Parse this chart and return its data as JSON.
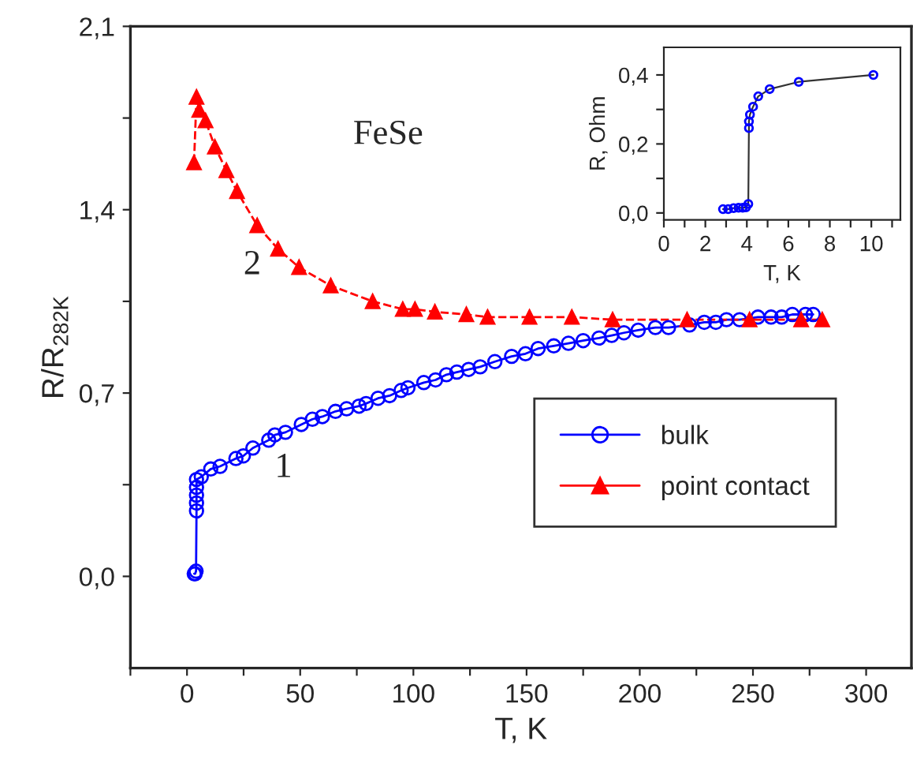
{
  "chart_data": [
    {
      "type": "line",
      "xlabel": "T, K",
      "ylabel": "R/R$_{282K}$",
      "xlim": [
        -25,
        320
      ],
      "ylim": [
        -0.35,
        2.1
      ],
      "xticks": [
        {
          "value": -25,
          "label": null
        },
        0,
        {
          "value": 25,
          "label": null
        },
        50,
        {
          "value": 75,
          "label": null
        },
        100,
        {
          "value": 125,
          "label": null
        },
        150,
        {
          "value": 175,
          "label": null
        },
        200,
        {
          "value": 225,
          "label": null
        },
        250,
        {
          "value": 275,
          "label": null
        },
        300
      ],
      "yticks": [
        {
          "value": 0.0,
          "label": "0,0"
        },
        {
          "value": 0.35,
          "label": null
        },
        {
          "value": 0.7,
          "label": "0,7"
        },
        {
          "value": 1.05,
          "label": null
        },
        {
          "value": 1.4,
          "label": "1,4"
        },
        {
          "value": 1.75,
          "label": null
        },
        {
          "value": 2.1,
          "label": "2,1"
        }
      ],
      "grid": false,
      "legend": "bottom right",
      "series": [
        {
          "name": "bulk",
          "color": "#0000ff",
          "marker": "circle",
          "line_style": "solid",
          "x": [
            3.2,
            3.6,
            4.0,
            4.2,
            4.2,
            4.2,
            4.2,
            4.2,
            6.3,
            10.5,
            14.6,
            21.6,
            24.9,
            29.1,
            36.1,
            38.8,
            43.5,
            50.5,
            55.4,
            59.8,
            65.6,
            70.5,
            76.0,
            79.1,
            84.4,
            89.5,
            94.6,
            97.6,
            104.6,
            109.8,
            114.6,
            119.2,
            124.4,
            129.5,
            136.0,
            143.4,
            149.5,
            155.1,
            162.0,
            168.5,
            175.0,
            182.0,
            187.6,
            193.0,
            199.3,
            206.9,
            212.7,
            222.0,
            228.5,
            233.6,
            238.3,
            244.1,
            252.2,
            258.0,
            262.7,
            267.4,
            273.2,
            276.6
          ],
          "values": [
            0.01,
            0.01,
            0.02,
            0.25,
            0.28,
            0.31,
            0.34,
            0.37,
            0.38,
            0.41,
            0.42,
            0.45,
            0.46,
            0.49,
            0.52,
            0.54,
            0.55,
            0.58,
            0.6,
            0.61,
            0.63,
            0.64,
            0.65,
            0.66,
            0.68,
            0.69,
            0.71,
            0.72,
            0.74,
            0.75,
            0.77,
            0.78,
            0.79,
            0.8,
            0.82,
            0.84,
            0.85,
            0.87,
            0.88,
            0.89,
            0.9,
            0.91,
            0.92,
            0.93,
            0.94,
            0.95,
            0.95,
            0.96,
            0.97,
            0.97,
            0.98,
            0.98,
            0.99,
            0.99,
            0.99,
            1.0,
            1.0,
            1.0
          ]
        },
        {
          "name": "point contact",
          "color": "#ff0000",
          "marker": "triangle",
          "line_style": "dashed",
          "x": [
            3.1,
            4.2,
            5.4,
            8.2,
            12.3,
            17.4,
            22.1,
            31.0,
            40.2,
            49.5,
            63.5,
            82.0,
            95.3,
            100.7,
            109.5,
            123.4,
            132.8,
            151.3,
            170.0,
            188.0,
            220.9,
            248.5,
            271.3,
            280.6
          ],
          "values": [
            1.58,
            1.83,
            1.78,
            1.74,
            1.64,
            1.55,
            1.47,
            1.34,
            1.25,
            1.18,
            1.11,
            1.05,
            1.02,
            1.02,
            1.01,
            1.0,
            0.99,
            0.99,
            0.99,
            0.98,
            0.98,
            0.98,
            0.98,
            0.98
          ]
        }
      ],
      "annotations": [
        "FeSe",
        "2",
        "1"
      ]
    },
    {
      "type": "line",
      "xlabel": "T, K",
      "ylabel": "R, Ohm",
      "xlim": [
        0,
        11.4
      ],
      "ylim": [
        -0.02,
        0.48
      ],
      "xticks": [
        0,
        {
          "value": 1,
          "label": null
        },
        2,
        {
          "value": 3,
          "label": null
        },
        4,
        {
          "value": 5,
          "label": null
        },
        6,
        {
          "value": 7,
          "label": null
        },
        8,
        {
          "value": 9,
          "label": null
        },
        10,
        {
          "value": 11,
          "label": null
        }
      ],
      "yticks": [
        {
          "value": 0.0,
          "label": "0,0"
        },
        {
          "value": 0.1,
          "label": null
        },
        {
          "value": 0.2,
          "label": "0,2"
        },
        {
          "value": 0.3,
          "label": null
        },
        {
          "value": 0.4,
          "label": "0,4"
        }
      ],
      "grid": false,
      "series": [
        {
          "color": "#0000ff",
          "marker": "circle",
          "line_style": "solid",
          "x": [
            2.85,
            3.1,
            3.36,
            3.6,
            3.8,
            3.96,
            4.07,
            4.1,
            4.1,
            4.15,
            4.3,
            4.55,
            5.1,
            6.5,
            10.1
          ],
          "values": [
            0.011,
            0.011,
            0.014,
            0.015,
            0.015,
            0.016,
            0.026,
            0.246,
            0.265,
            0.285,
            0.308,
            0.338,
            0.359,
            0.38,
            0.4
          ]
        }
      ]
    }
  ]
}
